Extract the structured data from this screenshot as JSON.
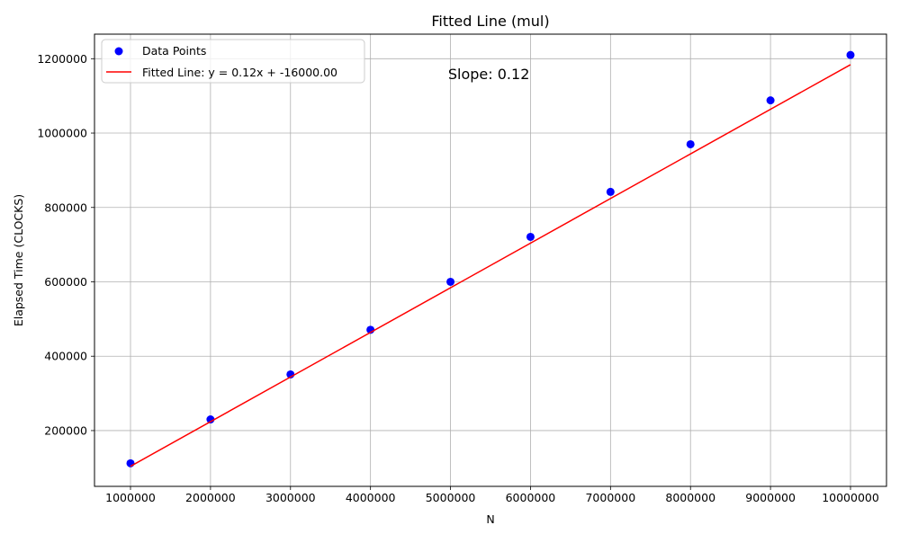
{
  "chart_data": {
    "type": "scatter",
    "title": "Fitted Line (mul)",
    "xlabel": "N",
    "ylabel": "Elapsed Time (CLOCKS)",
    "xlim": [
      550000,
      10450000
    ],
    "ylim": [
      50000,
      1266000
    ],
    "grid": true,
    "legend_position": "top-left",
    "x_ticks": [
      1000000,
      2000000,
      3000000,
      4000000,
      5000000,
      6000000,
      7000000,
      8000000,
      9000000,
      10000000
    ],
    "x_tick_labels": [
      "1000000",
      "2000000",
      "3000000",
      "4000000",
      "5000000",
      "6000000",
      "7000000",
      "8000000",
      "9000000",
      "10000000"
    ],
    "y_ticks": [
      200000,
      400000,
      600000,
      800000,
      1000000,
      1200000
    ],
    "y_tick_labels": [
      "200000",
      "400000",
      "600000",
      "800000",
      "1000000",
      "1200000"
    ],
    "series": [
      {
        "name": "Data Points",
        "kind": "scatter",
        "color": "#0000ff",
        "x": [
          1000000,
          2000000,
          3000000,
          4000000,
          5000000,
          6000000,
          7000000,
          8000000,
          9000000,
          10000000
        ],
        "y": [
          112000,
          230000,
          351000,
          471000,
          600000,
          721000,
          842000,
          970000,
          1088000,
          1210000
        ]
      },
      {
        "name": "Fitted Line: y = 0.12x + -16000.00",
        "kind": "line",
        "color": "#ff0000",
        "x": [
          1000000,
          10000000
        ],
        "y": [
          104000,
          1184000
        ],
        "slope": 0.12,
        "intercept": -16000
      }
    ],
    "annotations": [
      {
        "text": "Slope: 0.12",
        "x": 4970000,
        "y": 1145000
      }
    ]
  }
}
